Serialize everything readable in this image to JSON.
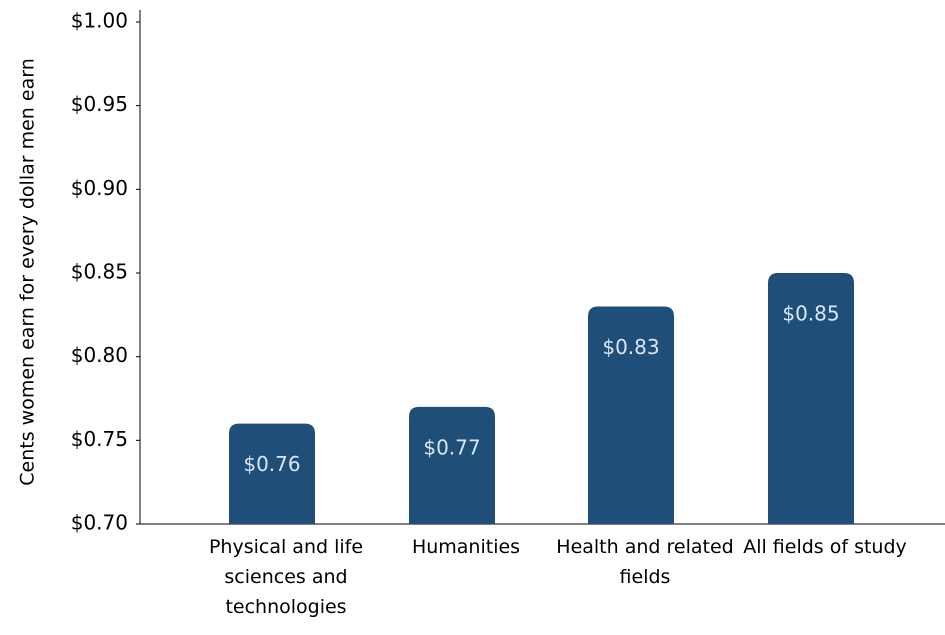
{
  "chart_data": {
    "type": "bar",
    "y_label": "Cents women earn for every dollar men earn",
    "categories": [
      "Physical and life sciences and technologies",
      "Humanities",
      "Health and related fields",
      "All fields of study"
    ],
    "values": [
      0.76,
      0.77,
      0.83,
      0.85
    ],
    "value_labels": [
      "$0.76",
      "$0.77",
      "$0.83",
      "$0.85"
    ],
    "color": "#1f4e79",
    "ylim": [
      0.7,
      1.0
    ],
    "yticks": [
      {
        "value": 0.7,
        "label": "$0.70"
      },
      {
        "value": 0.75,
        "label": "$0.75"
      },
      {
        "value": 0.8,
        "label": "$0.80"
      },
      {
        "value": 0.85,
        "label": "$0.85"
      },
      {
        "value": 0.9,
        "label": "$0.90"
      },
      {
        "value": 0.95,
        "label": "$0.95"
      },
      {
        "value": 1.0,
        "label": "$1.00"
      }
    ],
    "grid": false
  }
}
